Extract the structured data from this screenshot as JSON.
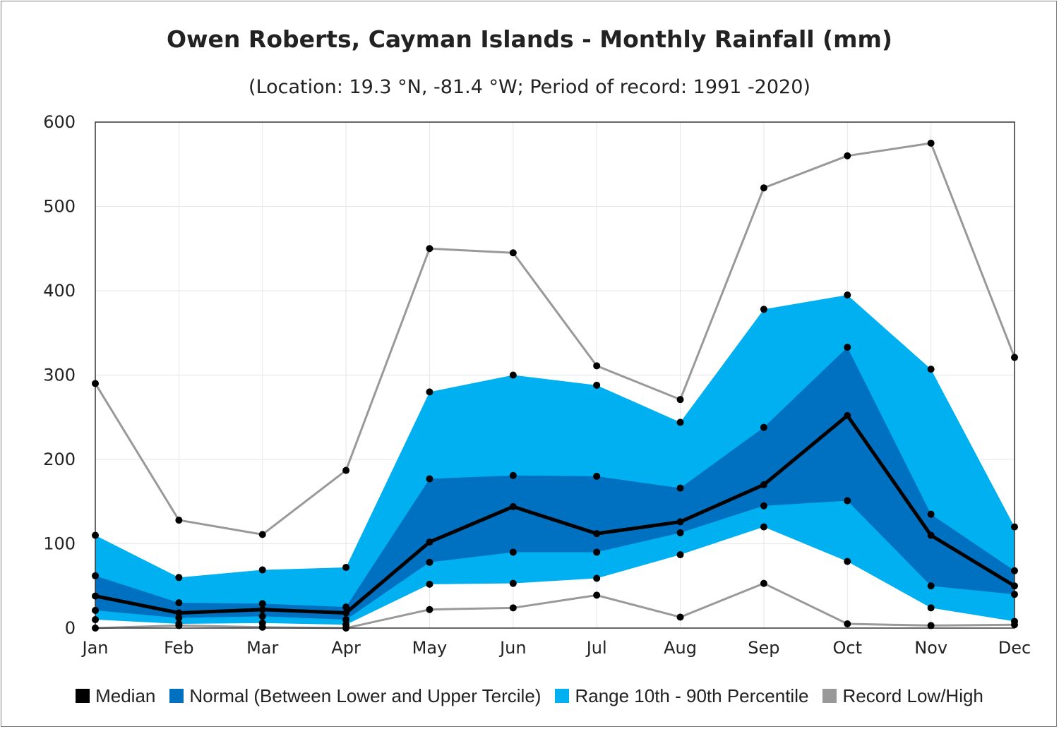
{
  "chart_data": {
    "type": "area",
    "title": "Owen Roberts, Cayman Islands - Monthly Rainfall (mm)",
    "subtitle": "(Location: 19.3 °N, -81.4 °W; Period of record: 1991 -2020)",
    "xlabel": "",
    "ylabel": "",
    "categories": [
      "Jan",
      "Feb",
      "Mar",
      "Apr",
      "May",
      "Jun",
      "Jul",
      "Aug",
      "Sep",
      "Oct",
      "Nov",
      "Dec"
    ],
    "ylim": [
      0,
      600
    ],
    "yticks": [
      0,
      100,
      200,
      300,
      400,
      500,
      600
    ],
    "grid": true,
    "legend_position": "bottom",
    "colors": {
      "median": "#000000",
      "normal": "#0070c0",
      "range": "#00b0f0",
      "record": "#999999"
    },
    "series": {
      "record_high": [
        290,
        128,
        111,
        187,
        450,
        445,
        311,
        271,
        522,
        560,
        575,
        321
      ],
      "p90": [
        110,
        60,
        69,
        72,
        280,
        300,
        288,
        244,
        378,
        395,
        307,
        120
      ],
      "upper_tercile": [
        62,
        30,
        29,
        25,
        177,
        181,
        180,
        166,
        238,
        333,
        135,
        68
      ],
      "median": [
        38,
        18,
        22,
        18,
        102,
        144,
        112,
        126,
        170,
        252,
        110,
        50
      ],
      "lower_tercile": [
        21,
        12,
        14,
        10,
        78,
        90,
        90,
        113,
        145,
        151,
        50,
        40
      ],
      "p10": [
        10,
        5,
        6,
        4,
        52,
        53,
        59,
        87,
        120,
        79,
        24,
        8
      ],
      "record_low": [
        0,
        3,
        1,
        0,
        22,
        24,
        39,
        13,
        53,
        5,
        3,
        4
      ]
    },
    "legend": [
      {
        "key": "median",
        "label": "Median"
      },
      {
        "key": "normal",
        "label": "Normal (Between Lower and Upper Tercile)"
      },
      {
        "key": "range",
        "label": "Range 10th - 90th Percentile"
      },
      {
        "key": "record",
        "label": "Record Low/High"
      }
    ]
  }
}
